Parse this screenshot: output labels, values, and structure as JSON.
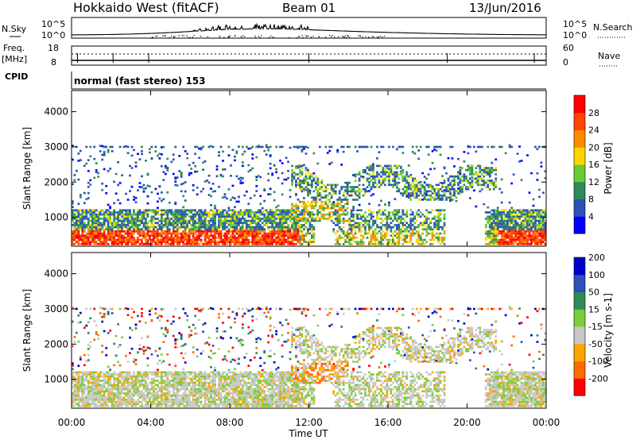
{
  "header": {
    "station": "Hokkaido West (fitACF)",
    "beam": "Beam 01",
    "date": "13/Jun/2016"
  },
  "noise_panel": {
    "left_label_top": "N.Sky",
    "left_tick_top": "10^5",
    "left_tick_bottom": "10^0",
    "right_tick_top": "10^5",
    "right_tick_bottom": "10^0",
    "right_label": "N.Search"
  },
  "freq_panel": {
    "left_label_line1": "Freq.",
    "left_label_line2": "[MHz]",
    "left_tick_top": "18",
    "left_tick_bottom": "8",
    "right_tick_top": "60",
    "right_tick_bottom": "0",
    "right_label": "Nave"
  },
  "cpid_panel": {
    "label": "CPID",
    "mode_text": "normal (fast stereo) 153"
  },
  "colors": {
    "power": [
      "#0000ff",
      "#2a52b8",
      "#2e8b57",
      "#66cc33",
      "#ffd700",
      "#ff8c00",
      "#ff4500",
      "#ff0000"
    ],
    "velocity": [
      "#ff0000",
      "#ff6a00",
      "#ffa500",
      "#c8c8c8",
      "#7ccd3c",
      "#2e8b57",
      "#2a52b8",
      "#0000cd"
    ]
  },
  "chart_data": [
    {
      "type": "heatmap",
      "name": "power",
      "ylabel": "Slant Range [km]",
      "yticks": [
        "1000",
        "2000",
        "3000",
        "4000"
      ],
      "ylim": [
        180,
        4600
      ],
      "colorbar_label": "Power [dB]",
      "colorbar_ticks": [
        "4",
        "8",
        "12",
        "16",
        "20",
        "24",
        "28"
      ],
      "colorbar_range": [
        0,
        32
      ]
    },
    {
      "type": "heatmap",
      "name": "velocity",
      "ylabel": "Slant Range [km]",
      "yticks": [
        "1000",
        "2000",
        "3000",
        "4000"
      ],
      "ylim": [
        180,
        4600
      ],
      "colorbar_label": "Velocity [m s-1]",
      "colorbar_ticks": [
        "-200",
        "-100",
        "-50",
        "-15",
        "15",
        "50",
        "100",
        "200"
      ]
    }
  ],
  "xaxis": {
    "label": "Time UT",
    "ticks": [
      "00:00",
      "04:00",
      "08:00",
      "12:00",
      "16:00",
      "20:00",
      "00:00"
    ],
    "range_hours": [
      0,
      24
    ]
  }
}
